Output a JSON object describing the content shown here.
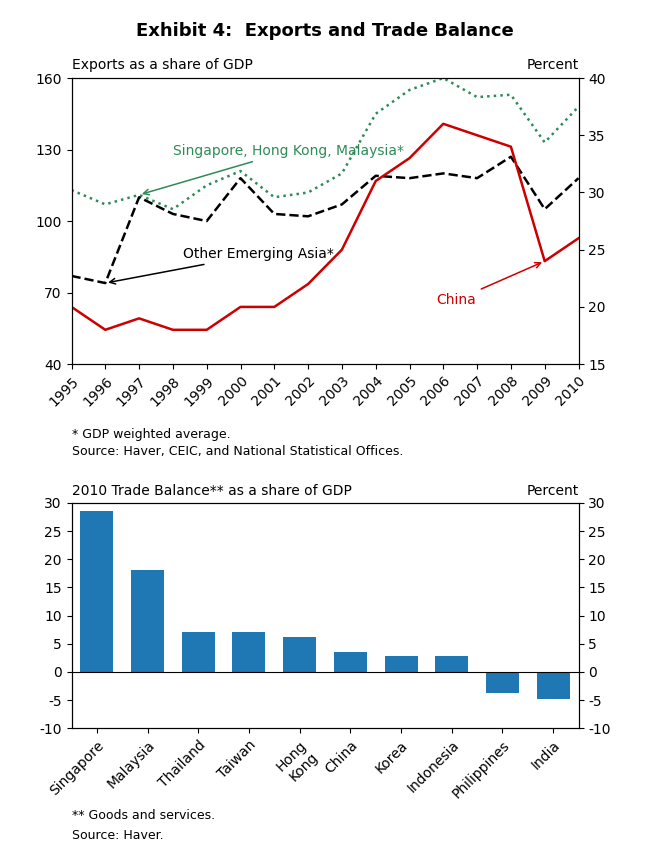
{
  "title": "Exhibit 4:  Exports and Trade Balance",
  "chart_data": [
    {
      "type": "line",
      "ylabel": "Exports as a share of GDP",
      "y2label": "Percent",
      "x": [
        1995,
        1996,
        1997,
        1998,
        1999,
        2000,
        2001,
        2002,
        2003,
        2004,
        2005,
        2006,
        2007,
        2008,
        2009,
        2010
      ],
      "xlim": [
        1995,
        2010
      ],
      "xticks": [
        1995,
        1996,
        1997,
        1998,
        1999,
        2000,
        2001,
        2002,
        2003,
        2004,
        2005,
        2006,
        2007,
        2008,
        2009,
        2010
      ],
      "ylim": [
        40,
        160
      ],
      "yticks": [
        40,
        70,
        100,
        130,
        160
      ],
      "y2lim": [
        15,
        40
      ],
      "y2ticks": [
        15,
        20,
        25,
        30,
        35,
        40
      ],
      "series": [
        {
          "name": "Singapore, Hong Kong, Malaysia*",
          "color": "#2e8b57",
          "line_style": "dotted",
          "values": [
            113,
            107,
            111,
            105,
            115,
            121,
            110,
            112,
            120,
            145,
            155,
            160,
            152,
            153,
            133,
            148
          ]
        },
        {
          "name": "Other Emerging Asia*",
          "color": "#000000",
          "line_style": "dashed",
          "values": [
            77,
            74,
            110,
            103,
            100,
            118,
            103,
            102,
            107,
            119,
            118,
            120,
            118,
            127,
            105,
            118
          ]
        },
        {
          "name": "China",
          "color": "#cc0000",
          "line_style": "solid",
          "axis": "y2",
          "values": [
            20,
            18,
            19,
            18,
            18,
            20,
            20,
            22,
            25,
            31,
            33,
            36,
            35,
            34,
            24,
            26
          ]
        }
      ],
      "notes": [
        "* GDP weighted average.",
        "Source: Haver, CEIC, and National Statistical Offices."
      ]
    },
    {
      "type": "bar",
      "ylabel": "2010 Trade Balance** as a share of GDP",
      "y2label": "Percent",
      "categories": [
        "Singapore",
        "Malaysia",
        "Thailand",
        "Taiwan",
        "Hong\nKong",
        "China",
        "Korea",
        "Indonesia",
        "Philippines",
        "India"
      ],
      "values": [
        28.5,
        18.0,
        7.0,
        7.0,
        6.2,
        3.5,
        2.8,
        2.8,
        -3.8,
        -4.8
      ],
      "ylim": [
        -10,
        30
      ],
      "yticks": [
        -10,
        -5,
        0,
        5,
        10,
        15,
        20,
        25,
        30
      ],
      "y2lim": [
        -10,
        30
      ],
      "y2ticks": [
        -10,
        -5,
        0,
        5,
        10,
        15,
        20,
        25,
        30
      ],
      "notes": [
        "** Goods and services.",
        "Source: Haver."
      ]
    }
  ]
}
